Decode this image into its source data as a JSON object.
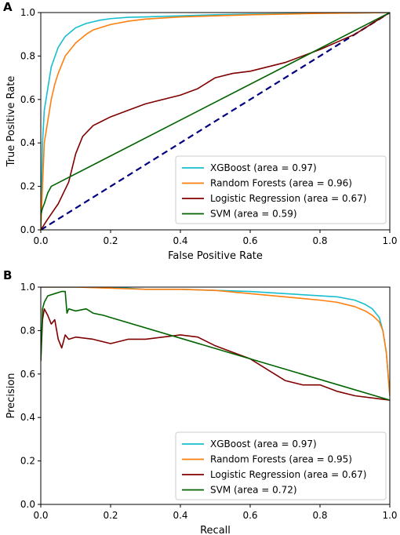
{
  "chart_data": [
    {
      "panel": "A",
      "type": "line",
      "xlabel": "False Positive Rate",
      "ylabel": "True Positive Rate",
      "xlim": [
        0,
        1
      ],
      "ylim": [
        0,
        1
      ],
      "xticks": [
        "0.0",
        "0.2",
        "0.4",
        "0.6",
        "0.8",
        "1.0"
      ],
      "yticks": [
        "0.0",
        "0.2",
        "0.4",
        "0.6",
        "0.8",
        "1.0"
      ],
      "legend_position": "lower-right",
      "reference_line": {
        "x": [
          0,
          1
        ],
        "y": [
          0,
          1
        ],
        "color": "#000080",
        "style": "dashed"
      },
      "series": [
        {
          "name": "XGBoost (area = 0.97)",
          "color": "#17becf",
          "x": [
            0,
            0.005,
            0.01,
            0.02,
            0.03,
            0.05,
            0.07,
            0.1,
            0.13,
            0.17,
            0.2,
            0.25,
            0.3,
            0.4,
            0.5,
            0.6,
            0.7,
            0.8,
            0.9,
            1.0
          ],
          "y": [
            0,
            0.4,
            0.55,
            0.65,
            0.75,
            0.84,
            0.89,
            0.93,
            0.95,
            0.965,
            0.972,
            0.978,
            0.98,
            0.985,
            0.99,
            0.993,
            0.995,
            0.997,
            0.998,
            1.0
          ]
        },
        {
          "name": "Random Forests (area = 0.96)",
          "color": "#ff7f0e",
          "x": [
            0,
            0.005,
            0.01,
            0.02,
            0.03,
            0.04,
            0.05,
            0.07,
            0.1,
            0.13,
            0.15,
            0.2,
            0.25,
            0.3,
            0.4,
            0.5,
            0.6,
            0.7,
            0.8,
            0.9,
            1.0
          ],
          "y": [
            0,
            0.2,
            0.4,
            0.5,
            0.6,
            0.67,
            0.72,
            0.8,
            0.86,
            0.9,
            0.92,
            0.945,
            0.96,
            0.97,
            0.98,
            0.985,
            0.99,
            0.993,
            0.996,
            0.998,
            1.0
          ]
        },
        {
          "name": "Logistic Regression (area = 0.67)",
          "color": "#800000",
          "x": [
            0,
            0.02,
            0.05,
            0.08,
            0.1,
            0.12,
            0.15,
            0.2,
            0.25,
            0.3,
            0.4,
            0.45,
            0.5,
            0.55,
            0.6,
            0.7,
            0.8,
            0.9,
            0.95,
            1.0
          ],
          "y": [
            0,
            0.05,
            0.12,
            0.22,
            0.35,
            0.43,
            0.48,
            0.52,
            0.55,
            0.58,
            0.62,
            0.65,
            0.7,
            0.72,
            0.73,
            0.77,
            0.83,
            0.9,
            0.95,
            1.0
          ]
        },
        {
          "name": "SVM (area = 0.59)",
          "color": "#006400",
          "x": [
            0,
            0.0,
            0.005,
            0.01,
            0.02,
            0.03,
            1.0
          ],
          "y": [
            0,
            0.07,
            0.1,
            0.12,
            0.17,
            0.2,
            1.0
          ]
        }
      ]
    },
    {
      "panel": "B",
      "type": "line",
      "xlabel": "Recall",
      "ylabel": "Precision",
      "xlim": [
        0,
        1
      ],
      "ylim": [
        0,
        1
      ],
      "xticks": [
        "0.0",
        "0.2",
        "0.4",
        "0.6",
        "0.8",
        "1.0"
      ],
      "yticks": [
        "0.0",
        "0.2",
        "0.4",
        "0.6",
        "0.8",
        "1.0"
      ],
      "legend_position": "lower-right",
      "series": [
        {
          "name": "XGBoost (area = 0.97)",
          "color": "#17becf",
          "x": [
            0,
            0.1,
            0.2,
            0.25,
            0.3,
            0.4,
            0.5,
            0.6,
            0.7,
            0.8,
            0.85,
            0.9,
            0.93,
            0.95,
            0.97,
            0.98,
            0.99,
            1.0
          ],
          "y": [
            1.0,
            1.0,
            1.0,
            0.995,
            0.99,
            0.99,
            0.985,
            0.98,
            0.97,
            0.96,
            0.955,
            0.94,
            0.92,
            0.9,
            0.86,
            0.8,
            0.7,
            0.5
          ]
        },
        {
          "name": "Random Forests (area = 0.95)",
          "color": "#ff7f0e",
          "x": [
            0,
            0.1,
            0.2,
            0.3,
            0.4,
            0.5,
            0.6,
            0.7,
            0.8,
            0.85,
            0.9,
            0.93,
            0.95,
            0.97,
            0.98,
            0.99,
            1.0
          ],
          "y": [
            1.0,
            1.0,
            0.995,
            0.99,
            0.99,
            0.985,
            0.97,
            0.955,
            0.94,
            0.93,
            0.91,
            0.89,
            0.87,
            0.84,
            0.8,
            0.7,
            0.5
          ]
        },
        {
          "name": "Logistic Regression (area = 0.67)",
          "color": "#800000",
          "x": [
            0,
            0.005,
            0.01,
            0.02,
            0.03,
            0.04,
            0.05,
            0.06,
            0.07,
            0.08,
            0.1,
            0.15,
            0.2,
            0.25,
            0.3,
            0.35,
            0.4,
            0.45,
            0.5,
            0.55,
            0.6,
            0.65,
            0.7,
            0.75,
            0.8,
            0.85,
            0.9,
            0.95,
            1.0
          ],
          "y": [
            0.66,
            0.85,
            0.9,
            0.87,
            0.83,
            0.85,
            0.76,
            0.72,
            0.78,
            0.76,
            0.77,
            0.76,
            0.74,
            0.76,
            0.76,
            0.77,
            0.78,
            0.77,
            0.73,
            0.7,
            0.67,
            0.62,
            0.57,
            0.55,
            0.55,
            0.52,
            0.5,
            0.49,
            0.48
          ]
        },
        {
          "name": "SVM (area = 0.72)",
          "color": "#006400",
          "x": [
            0,
            0.005,
            0.01,
            0.02,
            0.04,
            0.06,
            0.07,
            0.075,
            0.08,
            0.1,
            0.13,
            0.15,
            0.18,
            0.2,
            1.0
          ],
          "y": [
            0.66,
            0.9,
            0.93,
            0.96,
            0.97,
            0.98,
            0.98,
            0.88,
            0.9,
            0.89,
            0.9,
            0.88,
            0.87,
            0.86,
            0.48
          ]
        }
      ]
    }
  ]
}
